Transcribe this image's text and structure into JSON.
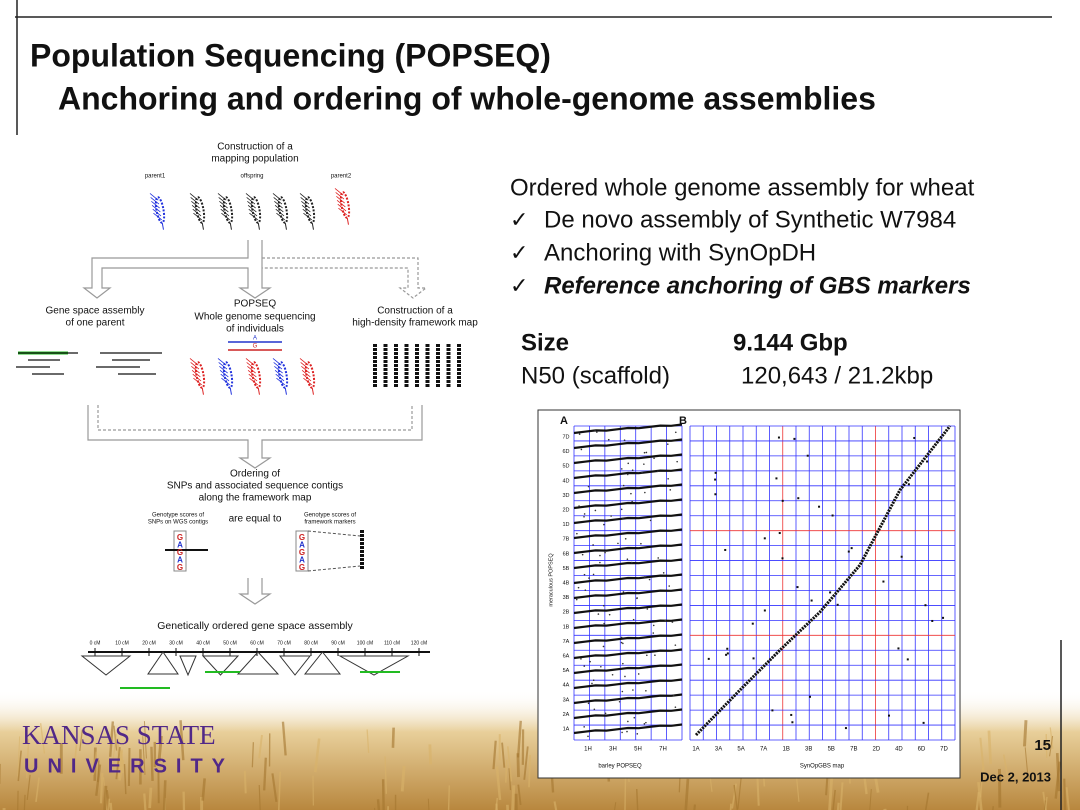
{
  "header": {
    "title": "Population Sequencing (POPSEQ)",
    "subtitle": "Anchoring and ordering of whole-genome assemblies"
  },
  "diagram": {
    "top_label": [
      "Construction of a",
      "mapping population"
    ],
    "parent1": "parent1",
    "offspring": "offspring",
    "parent2": "parent2",
    "left_label": [
      "Gene space assembly",
      "of one parent"
    ],
    "mid_title": "POPSEQ",
    "mid_label": [
      "Whole genome sequencing",
      "of individuals"
    ],
    "right_label": [
      "Construction of a",
      "high-density framework map"
    ],
    "allele_a": "A",
    "allele_g": "G",
    "ordering_label": [
      "Ordering of",
      "SNPs and associated sequence contigs",
      "along the framework map"
    ],
    "genotype_left": [
      "Genotype scores of",
      "SNPs on WGS contigs"
    ],
    "equal": "are equal to",
    "genotype_right": [
      "Genotype scores of",
      "framework markers"
    ],
    "bases": [
      "G",
      "A",
      "G",
      "A",
      "G"
    ],
    "bottom_label": "Genetically ordered gene space assembly",
    "scale": [
      "0 cM",
      "10 cM",
      "20 cM",
      "30 cM",
      "40 cM",
      "50 cM",
      "60 cM",
      "70 cM",
      "80 cM",
      "90 cM",
      "100 cM",
      "110 cM",
      "120 cM"
    ]
  },
  "bullets": {
    "heading": "Ordered whole genome assembly for wheat",
    "marker": "✓",
    "items": [
      "De novo assembly of Synthetic W7984",
      "Anchoring with SynOpDH",
      "Reference anchoring of GBS markers"
    ]
  },
  "stats": {
    "rows": [
      [
        "Size",
        "9.144 Gbp"
      ],
      [
        "N50 (scaffold)",
        "120,643 / 21.2kbp"
      ]
    ]
  },
  "figure": {
    "panel_a": "A",
    "panel_b": "B",
    "a_y_labels": [
      "7D",
      "6D",
      "5D",
      "4D",
      "3D",
      "2D",
      "1D",
      "7B",
      "6B",
      "5B",
      "4B",
      "3B",
      "2B",
      "1B",
      "7A",
      "6A",
      "5A",
      "4A",
      "3A",
      "2A",
      "1A"
    ],
    "a_x_labels": [
      "1H",
      "3H",
      "5H",
      "7H"
    ],
    "a_x_title": "barley POPSEQ",
    "a_y_title": "meraculous POPSEQ",
    "b_x_labels": [
      "1A",
      "3A",
      "5A",
      "7A",
      "1B",
      "3B",
      "5B",
      "7B",
      "2D",
      "4D",
      "6D",
      "7D"
    ],
    "b_x_title": "SynOpGBS map"
  },
  "footer": {
    "logo_top": "KANSAS STATE",
    "logo_bottom": "UNIVERSITY",
    "page": "15",
    "date": "Dec 2, 2013"
  }
}
